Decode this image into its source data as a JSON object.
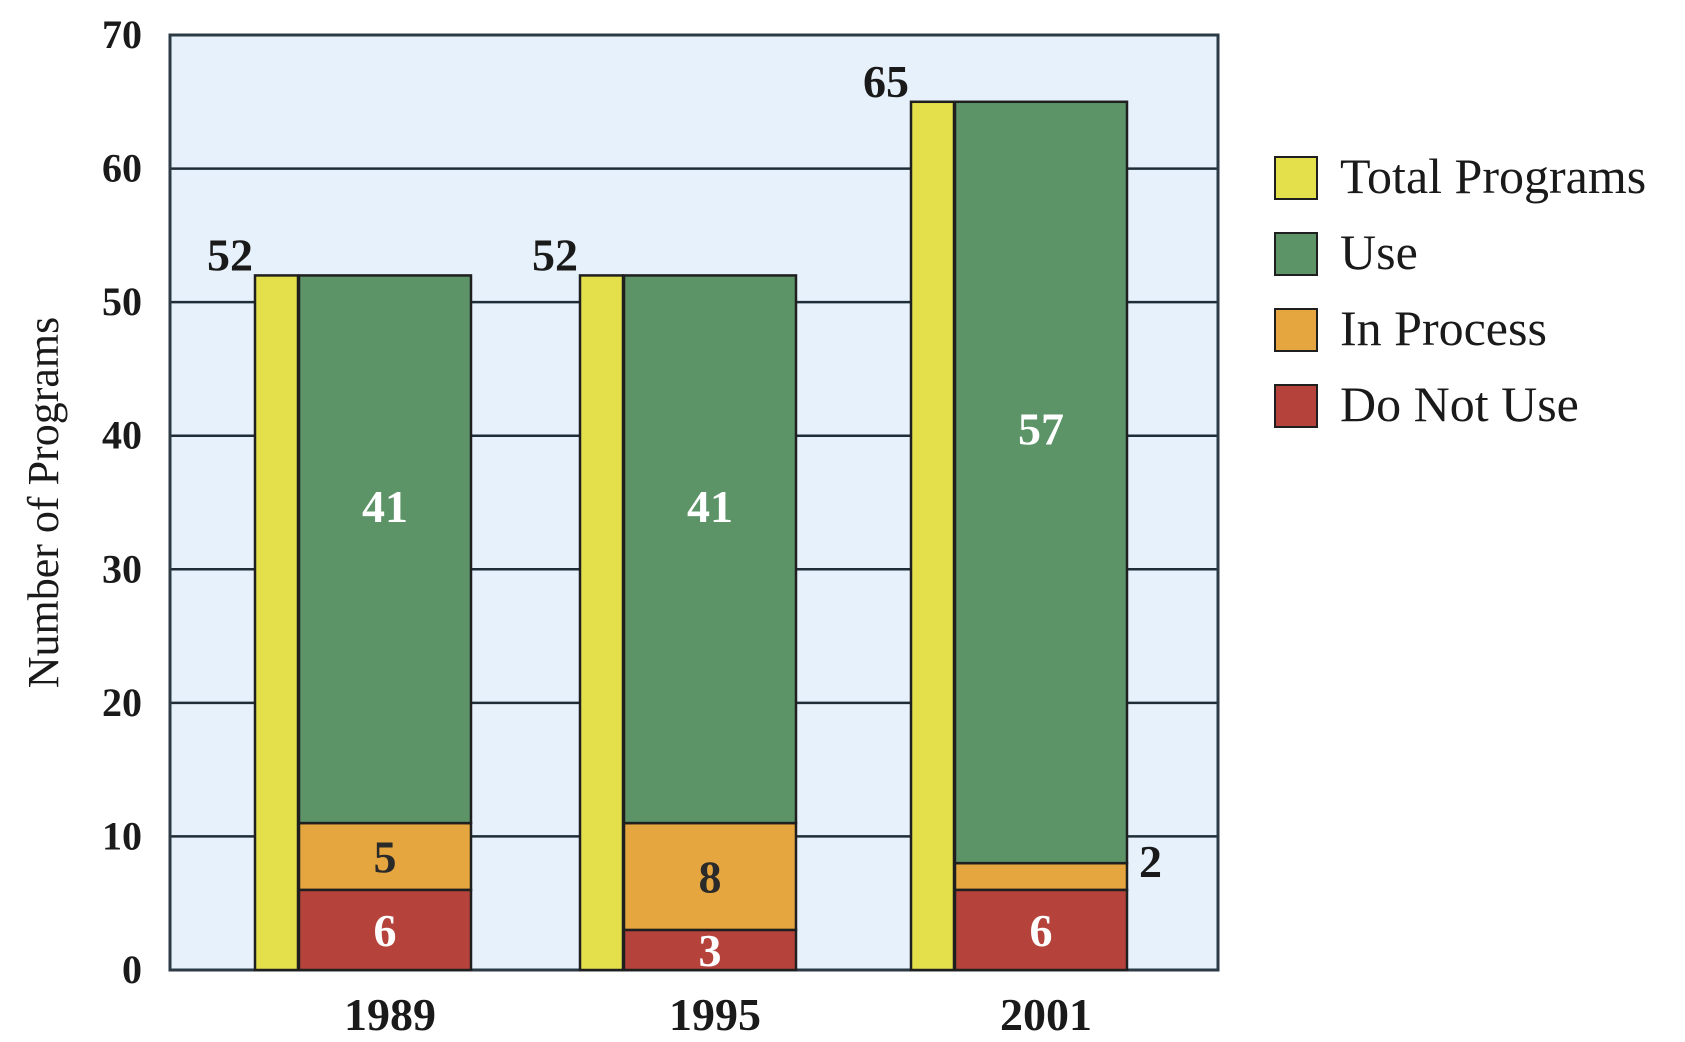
{
  "chart_data": {
    "type": "bar",
    "ylabel": "Number of Programs",
    "ylim": [
      0,
      70
    ],
    "yticks": [
      0,
      10,
      20,
      30,
      40,
      50,
      60,
      70
    ],
    "grid": true,
    "legend_position": "right",
    "categories": [
      "1989",
      "1995",
      "2001"
    ],
    "total": {
      "name": "Total Programs",
      "color": "#e3e04b",
      "values": [
        52,
        52,
        65
      ]
    },
    "stacked_series": [
      {
        "name": "Do Not Use",
        "color": "#b6433b",
        "values": [
          6,
          3,
          6
        ]
      },
      {
        "name": "In Process",
        "color": "#e6a63f",
        "values": [
          5,
          8,
          2
        ]
      },
      {
        "name": "Use",
        "color": "#5c9468",
        "values": [
          41,
          41,
          57
        ]
      }
    ]
  },
  "colors": {
    "plot_background": "#e6f1fb",
    "grid": "#1f2d38",
    "outline": "#1f1f1f"
  }
}
